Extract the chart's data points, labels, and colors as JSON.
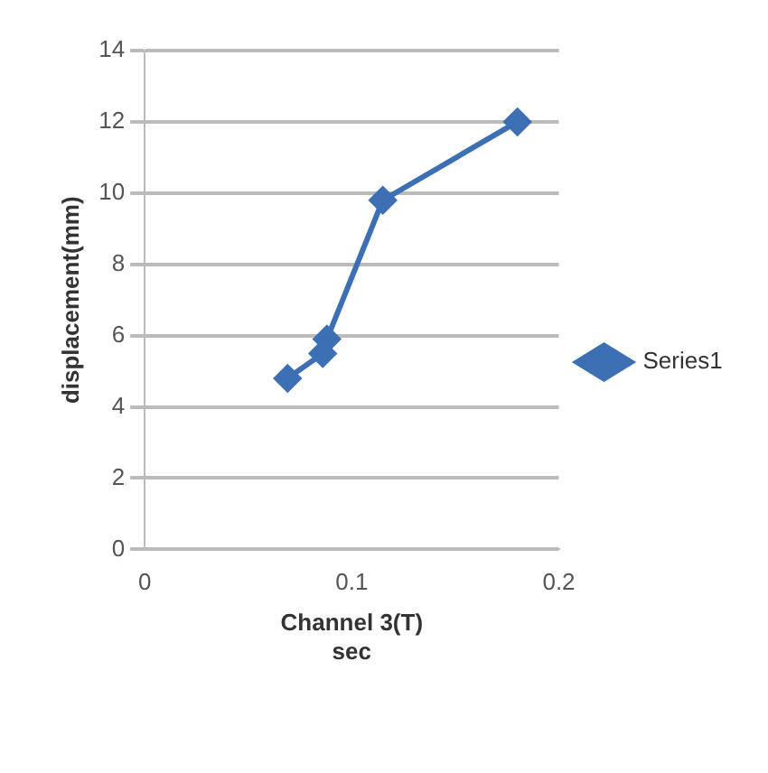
{
  "chart_data": {
    "type": "line",
    "xlabel": "Channel 3(T)\nsec",
    "ylabel": "displacement(mm)",
    "x": [
      0.069,
      0.086,
      0.088,
      0.115,
      0.18
    ],
    "series": [
      {
        "name": "Series1",
        "color": "#3c6fb4",
        "values": [
          4.8,
          5.5,
          5.9,
          9.8,
          12.0
        ]
      }
    ],
    "xlim": [
      0,
      0.2
    ],
    "xticks": [
      0,
      0.1,
      0.2
    ],
    "ylim": [
      0,
      14
    ],
    "yticks": [
      0,
      2,
      4,
      6,
      8,
      10,
      12,
      14
    ],
    "grid": "y",
    "legend": "right",
    "marker": "diamond",
    "line_style": "solid"
  }
}
